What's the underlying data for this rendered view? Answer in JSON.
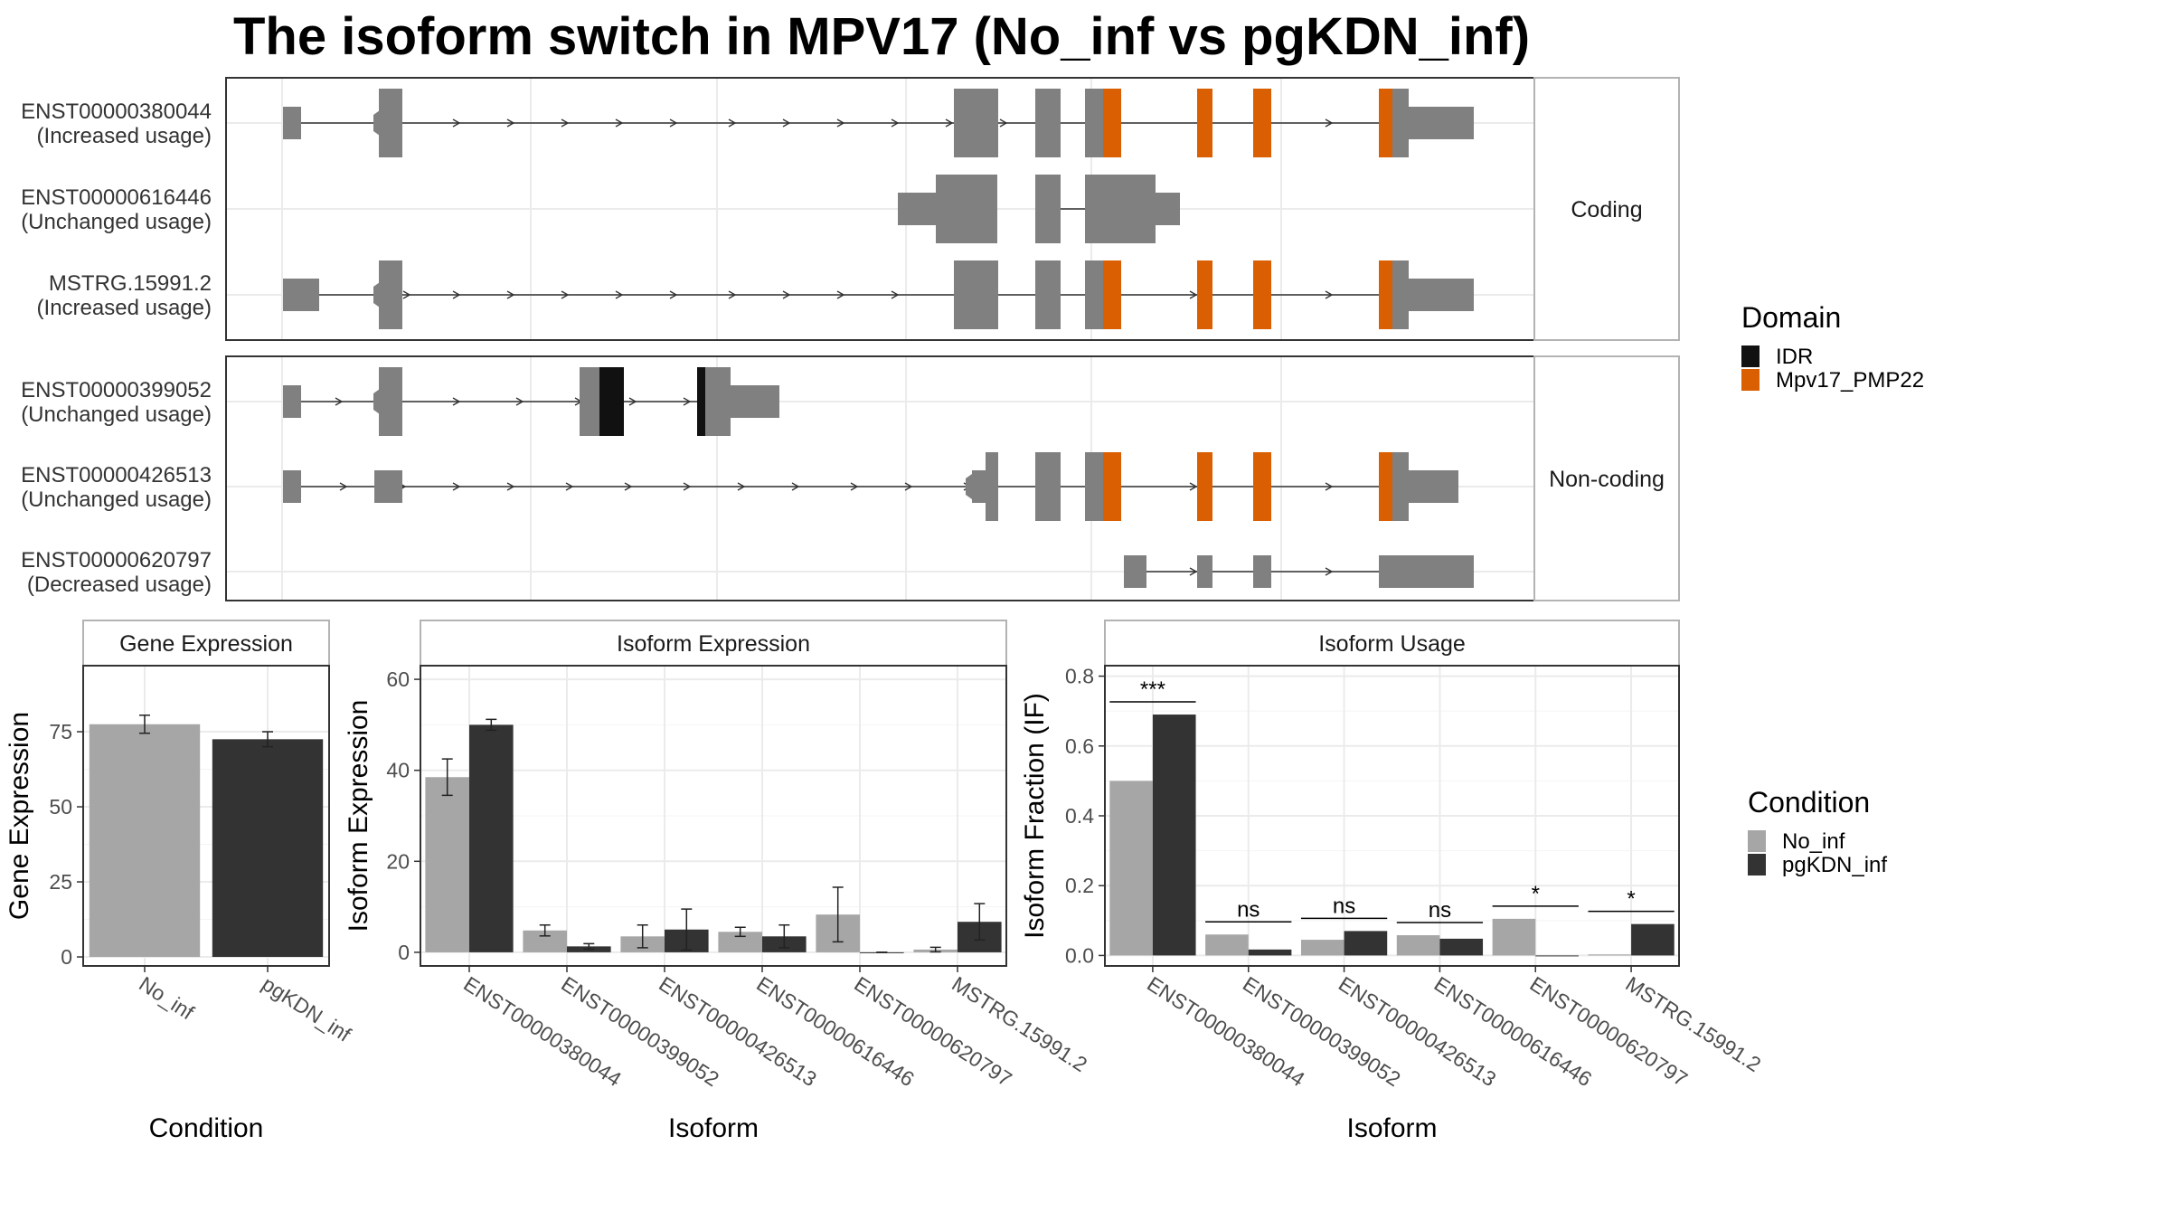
{
  "title": "The isoform switch in MPV17 (No_inf vs pgKDN_inf)",
  "colors": {
    "exon": "#808080",
    "idr": "#111111",
    "mpv17": "#d95f02",
    "no_inf": "#a6a6a6",
    "pgkdn_inf": "#333333",
    "grid": "#ebebeb",
    "panel_border": "#333333",
    "strip_bg": "#ffffff"
  },
  "legend_domain": {
    "title": "Domain",
    "items": [
      {
        "label": "IDR",
        "color": "#111111"
      },
      {
        "label": "Mpv17_PMP22",
        "color": "#d95f02"
      }
    ]
  },
  "legend_condition": {
    "title": "Condition",
    "items": [
      {
        "label": "No_inf",
        "color": "#a6a6a6"
      },
      {
        "label": "pgKDN_inf",
        "color": "#333333"
      }
    ]
  },
  "chart_data": [
    {
      "type": "gene_structure",
      "facets": [
        {
          "strip": "Coding",
          "isoforms": [
            {
              "id": "ENST00000380044",
              "usage": "(Increased usage)"
            },
            {
              "id": "ENST00000616446",
              "usage": "(Unchanged usage)"
            },
            {
              "id": "MSTRG.15991.2",
              "usage": "(Increased usage)"
            }
          ]
        },
        {
          "strip": "Non-coding",
          "isoforms": [
            {
              "id": "ENST00000399052",
              "usage": "(Unchanged usage)"
            },
            {
              "id": "ENST00000426513",
              "usage": "(Unchanged usage)"
            },
            {
              "id": "ENST00000620797",
              "usage": "(Decreased usage)"
            }
          ]
        }
      ]
    },
    {
      "type": "bar",
      "panel": "Gene Expression",
      "xlabel": "Condition",
      "ylabel": "Gene Expression",
      "categories": [
        "No_inf",
        "pgKDN_inf"
      ],
      "values": [
        77.5,
        72.5
      ],
      "errors": [
        3,
        2.5
      ],
      "ylim": [
        -3,
        97
      ],
      "yticks": [
        0,
        25,
        50,
        75
      ]
    },
    {
      "type": "bar",
      "panel": "Isoform Expression",
      "xlabel": "Isoform",
      "ylabel": "Isoform Expression",
      "categories": [
        "ENST00000380044",
        "ENST00000399052",
        "ENST00000426513",
        "ENST00000616446",
        "ENST00000620797",
        "MSTRG.15991.2"
      ],
      "series": [
        {
          "name": "No_inf",
          "values": [
            38.5,
            4.8,
            3.5,
            4.5,
            8.3,
            0.6
          ],
          "errors": [
            4,
            1.2,
            2.5,
            1,
            6,
            0.5
          ]
        },
        {
          "name": "pgKDN_inf",
          "values": [
            50,
            1.3,
            5,
            3.5,
            0,
            6.7
          ],
          "errors": [
            1.2,
            0.6,
            4.5,
            2.5,
            0,
            4
          ]
        }
      ],
      "ylim": [
        -3,
        63
      ],
      "yticks": [
        0,
        20,
        40,
        60
      ]
    },
    {
      "type": "bar",
      "panel": "Isoform Usage",
      "xlabel": "Isoform",
      "ylabel": "Isoform Fraction (IF)",
      "categories": [
        "ENST00000380044",
        "ENST00000399052",
        "ENST00000426513",
        "ENST00000616446",
        "ENST00000620797",
        "MSTRG.15991.2"
      ],
      "series": [
        {
          "name": "No_inf",
          "values": [
            0.5,
            0.06,
            0.045,
            0.058,
            0.105,
            0.003
          ]
        },
        {
          "name": "pgKDN_inf",
          "values": [
            0.69,
            0.017,
            0.07,
            0.048,
            0.0,
            0.09
          ]
        }
      ],
      "significance": [
        "***",
        "ns",
        "ns",
        "ns",
        "*",
        "*"
      ],
      "ylim": [
        -0.03,
        0.83
      ],
      "yticks": [
        0.0,
        0.2,
        0.4,
        0.6,
        0.8
      ]
    }
  ]
}
